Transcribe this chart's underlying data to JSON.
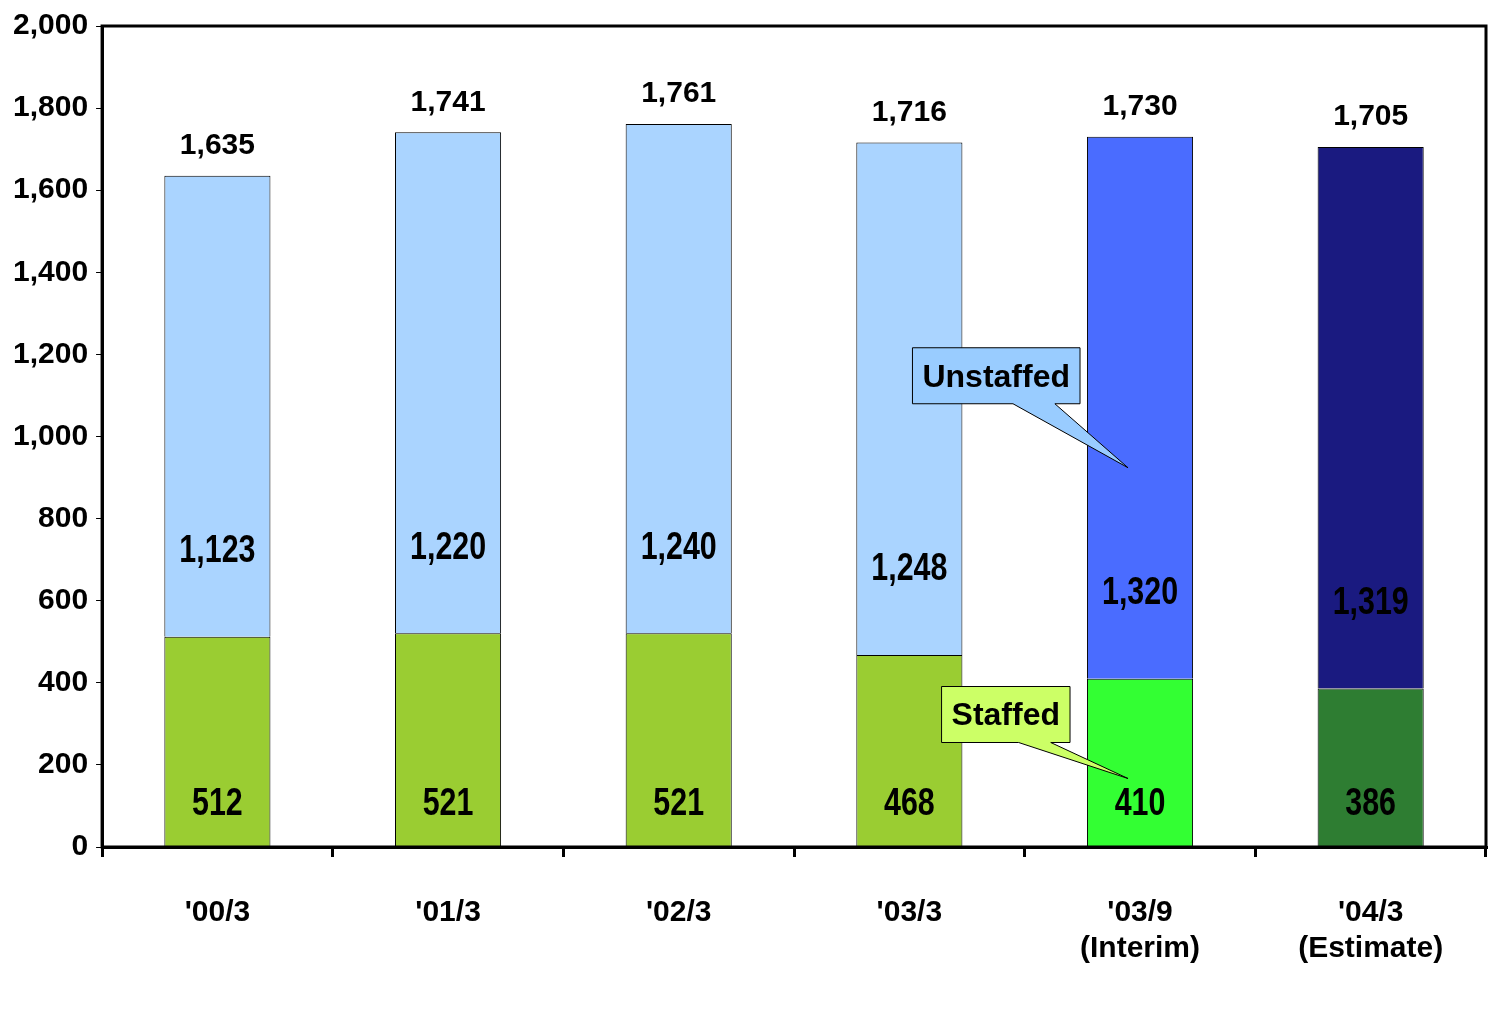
{
  "chart_data": {
    "type": "bar",
    "stacked": true,
    "categories": [
      "'00/3",
      "'01/3",
      "'02/3",
      "'03/3",
      "'03/9\n(Interim)",
      "'04/3\n(Estimate)"
    ],
    "series": [
      {
        "name": "Staffed",
        "colors": [
          "#9acd32",
          "#9acd32",
          "#9acd32",
          "#9acd32",
          "#33ff33",
          "#2e7d32"
        ],
        "values": [
          512,
          521,
          521,
          468,
          410,
          386
        ],
        "value_labels": [
          "512",
          "521",
          "521",
          "468",
          "410",
          "386"
        ]
      },
      {
        "name": "Unstaffed",
        "colors": [
          "#aad4ff",
          "#aad4ff",
          "#aad4ff",
          "#aad4ff",
          "#4a6cff",
          "#1a1a80"
        ],
        "values": [
          1123,
          1220,
          1240,
          1248,
          1320,
          1319
        ],
        "value_labels": [
          "1,123",
          "1,220",
          "1,240",
          "1,248",
          "1,320",
          "1,319"
        ]
      }
    ],
    "ylim": [
      0,
      2000
    ],
    "yticks": [
      0,
      200,
      400,
      600,
      800,
      {
        "value": 1000,
        "label": "1,000"
      },
      {
        "value": 1200,
        "label": "1,200"
      },
      {
        "value": 1400,
        "label": "1,400"
      },
      {
        "value": 1600,
        "label": "1,600"
      },
      {
        "value": 1800,
        "label": "1,800"
      },
      {
        "value": 2000,
        "label": "2,000"
      }
    ],
    "totals": [
      "1,635",
      "1,741",
      "1,761",
      "1,716",
      "1,730",
      "1,705"
    ],
    "grid": false,
    "legend": false
  }
}
